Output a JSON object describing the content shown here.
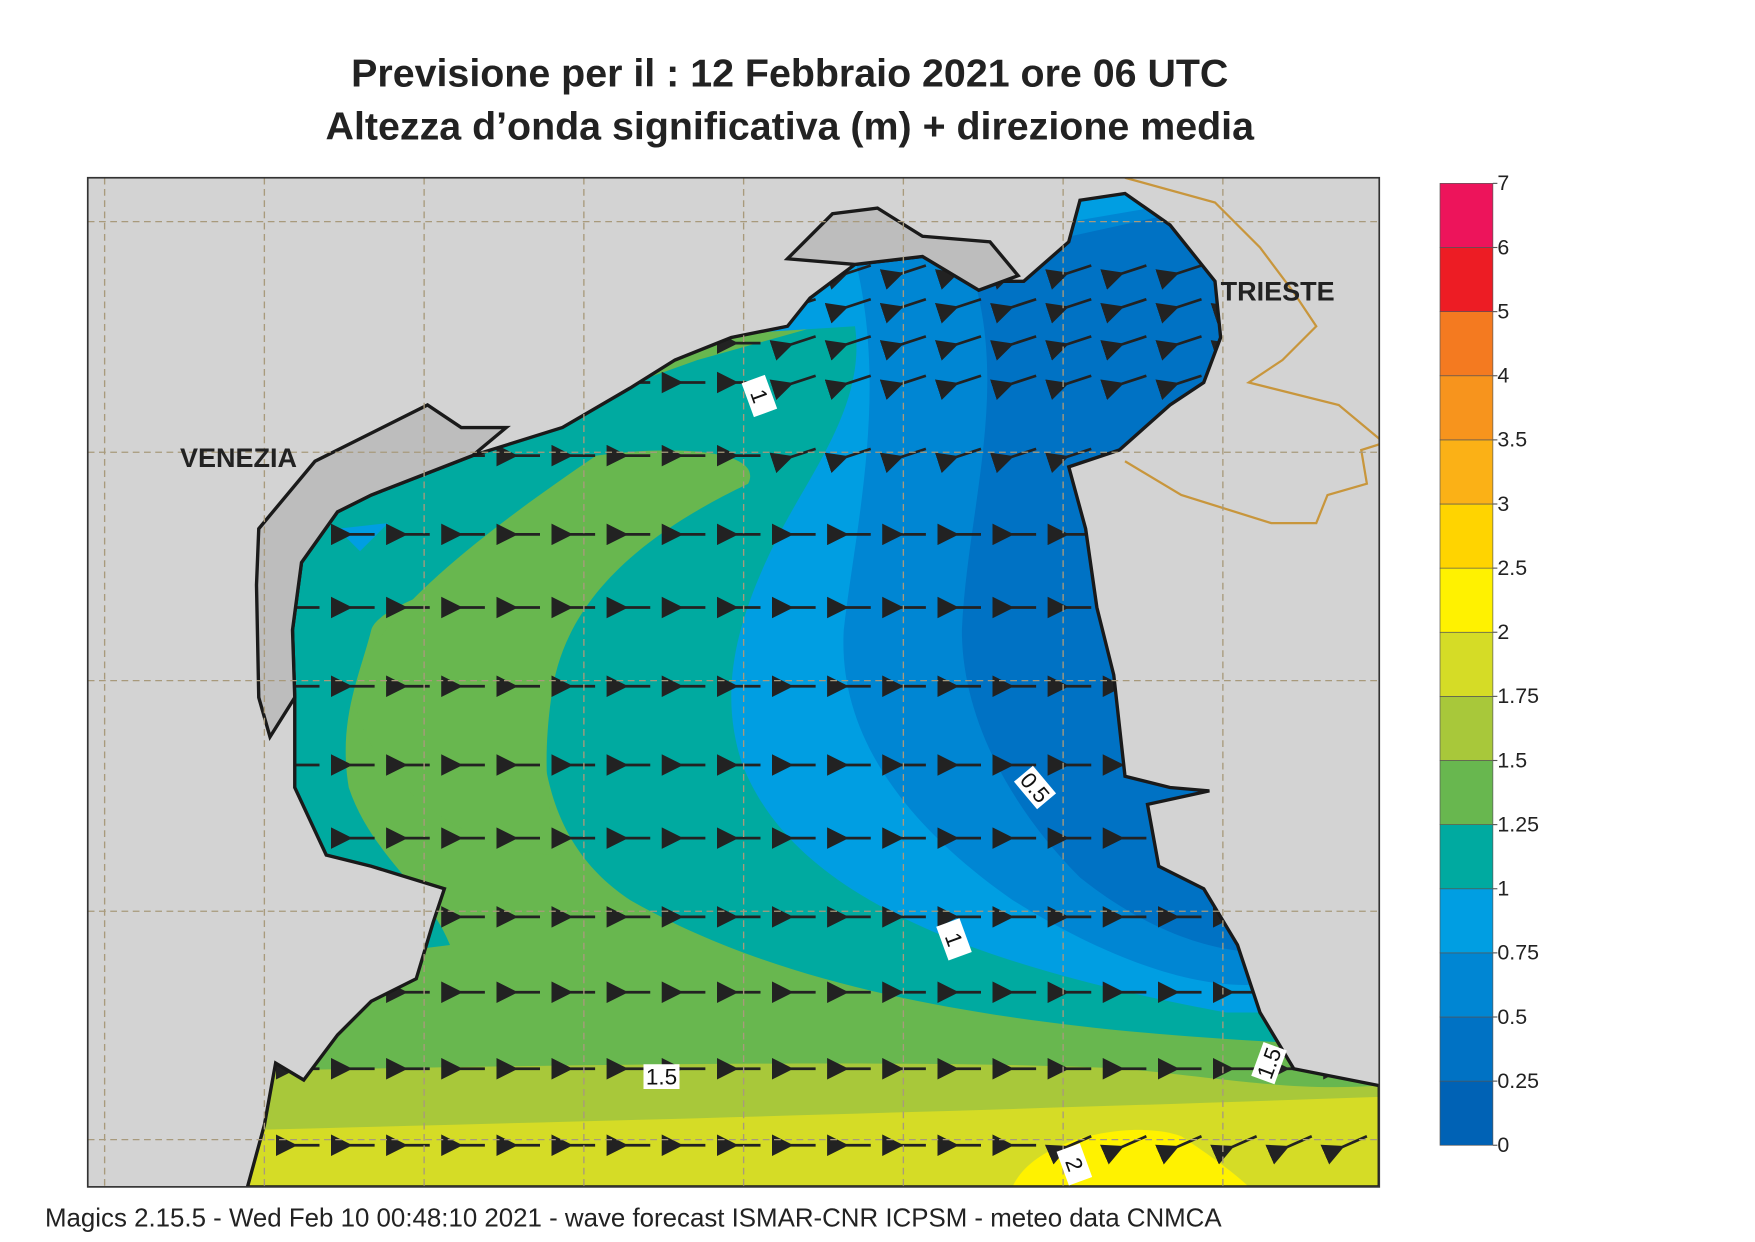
{
  "title": [
    "Previsione per il  :  12  Febbraio 2021   ore 06 UTC",
    "Altezza d’onda significativa (m) + direzione media"
  ],
  "places": [
    "VENEZIA",
    "TRIESTE"
  ],
  "contour_labels": [
    1,
    0.5,
    1,
    1.5,
    1.5,
    2
  ],
  "colorbar": {
    "levels": [
      0,
      0.25,
      0.5,
      0.75,
      1,
      1.25,
      1.5,
      1.75,
      2,
      2.5,
      3,
      3.5,
      4,
      5,
      6,
      7
    ],
    "colors": [
      "#0062b5",
      "#0072c4",
      "#0086d3",
      "#009ee2",
      "#00aaa0",
      "#68b74f",
      "#a8c83a",
      "#d5dc26",
      "#fff200",
      "#ffd400",
      "#fbb116",
      "#f7941d",
      "#f47a20",
      "#ed1c24",
      "#ed145b"
    ]
  },
  "footer": "Magics 2.15.5 - Wed Feb 10 00:48:10 2021 - wave forecast  ISMAR-CNR  ICPSM - meteo data   CNMCA"
}
